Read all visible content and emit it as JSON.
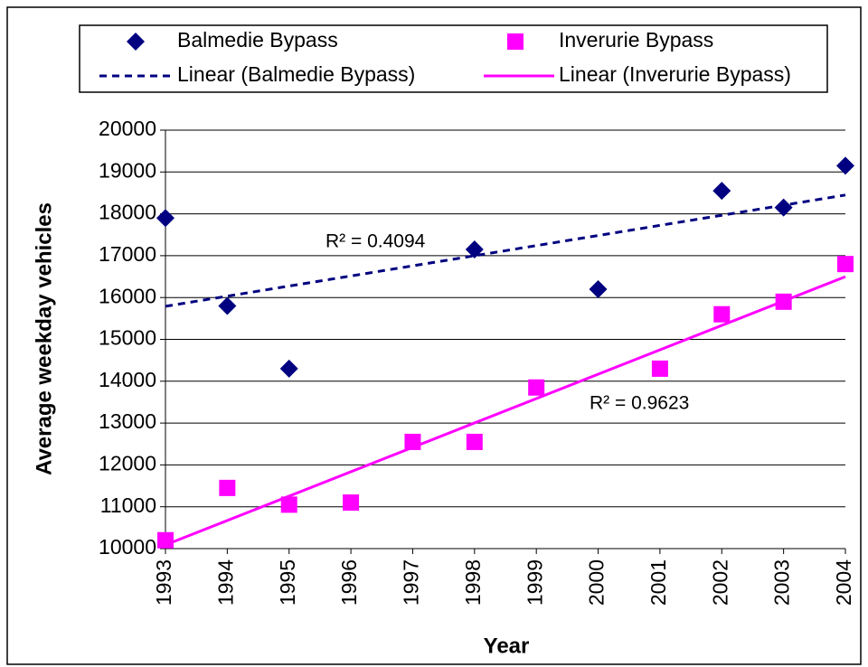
{
  "chart_data": {
    "type": "scatter",
    "y_label": "Average weekday vehicles",
    "x_label": "Year",
    "x": [
      1993,
      1994,
      1995,
      1996,
      1997,
      1998,
      1999,
      2000,
      2001,
      2002,
      2003,
      2004
    ],
    "xlim": [
      1993,
      2004
    ],
    "xticks": [
      1993,
      1994,
      1995,
      1996,
      1997,
      1998,
      1999,
      2000,
      2001,
      2002,
      2003,
      2004
    ],
    "ylim": [
      10000,
      20000
    ],
    "yticks": [
      10000,
      11000,
      12000,
      13000,
      14000,
      15000,
      16000,
      17000,
      18000,
      19000,
      20000
    ],
    "grid": true,
    "series": [
      {
        "name": "Balmedie Bypass",
        "color": "#000080",
        "marker": "diamond",
        "values": [
          17900,
          15800,
          14300,
          null,
          null,
          17150,
          null,
          16200,
          null,
          18550,
          18150,
          19150
        ],
        "trendline_name": "Linear (Balmedie Bypass)",
        "trendline_style": "dashed"
      },
      {
        "name": "Inverurie Bypass",
        "color": "#ff00ff",
        "marker": "square",
        "values": [
          10200,
          11450,
          11050,
          11100,
          12550,
          12550,
          13850,
          null,
          14300,
          15600,
          15900,
          16800
        ],
        "trendline_name": "Linear (Inverurie Bypass)",
        "trendline_style": "solid"
      }
    ],
    "annotations": [
      "R² = 0.4094",
      "R² = 0.9623"
    ]
  }
}
